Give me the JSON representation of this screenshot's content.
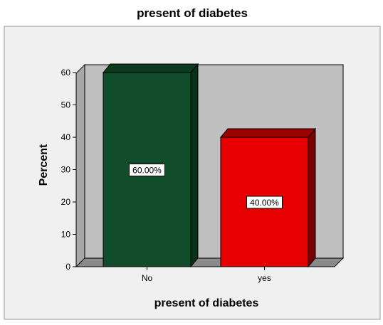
{
  "chart_data": {
    "type": "bar",
    "title": "present of diabetes",
    "xlabel": "present of diabetes",
    "ylabel": "Percent",
    "categories": [
      "No",
      "yes"
    ],
    "values": [
      60,
      40
    ],
    "data_labels": [
      "60.00%",
      "40.00%"
    ],
    "ylim": [
      0,
      60
    ],
    "yticks": [
      0,
      10,
      20,
      30,
      40,
      50,
      60
    ],
    "grid": false,
    "legend": "none",
    "style": "3d",
    "colors": {
      "bars": [
        "#124d2b",
        "#e60000"
      ],
      "bar_tops": [
        "#0b3a1e",
        "#9a0000"
      ],
      "bar_sides": [
        "#08301a",
        "#7a0000"
      ],
      "plot_background": "#c0c0c0",
      "outer_background": "#f0f0f0"
    }
  }
}
